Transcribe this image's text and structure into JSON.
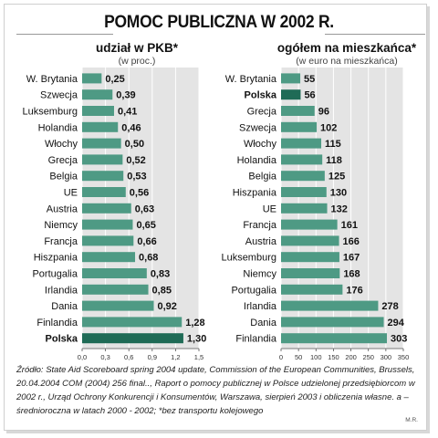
{
  "title": "POMOC PUBLICZNA W 2002 R.",
  "chart_data": [
    {
      "type": "bar",
      "orientation": "horizontal",
      "title": "udział w PKB*",
      "subtitle": "(w proc.)",
      "categories": [
        "W. Brytania",
        "Szwecja",
        "Luksemburg",
        "Holandia",
        "Włochy",
        "Grecja",
        "Belgia",
        "UE",
        "Austria",
        "Niemcy",
        "Francja",
        "Hiszpania",
        "Portugalia",
        "Irlandia",
        "Dania",
        "Finlandia",
        "Polska"
      ],
      "values": [
        0.25,
        0.39,
        0.41,
        0.46,
        0.5,
        0.52,
        0.53,
        0.56,
        0.63,
        0.65,
        0.66,
        0.68,
        0.83,
        0.85,
        0.92,
        1.28,
        1.3
      ],
      "value_labels": [
        "0,25",
        "0,39",
        "0,41",
        "0,46",
        "0,50",
        "0,52",
        "0,53",
        "0,56",
        "0,63",
        "0,65",
        "0,66",
        "0,68",
        "0,83",
        "0,85",
        "0,92",
        "1,28",
        "1,30"
      ],
      "xlim": [
        0,
        1.5
      ],
      "ticks": [
        0,
        0.3,
        0.6,
        0.9,
        1.2,
        1.5
      ],
      "tick_labels": [
        "0,0",
        "0,3",
        "0,6",
        "0,9",
        "1,2",
        "1,5"
      ],
      "bar_color": "#4e9a84",
      "highlight_color": "#1f6b56",
      "highlight_categories": [
        "Polska"
      ]
    },
    {
      "type": "bar",
      "orientation": "horizontal",
      "title": "ogółem na mieszkańca*",
      "subtitle": "(w euro na mieszkańca)",
      "categories": [
        "W. Brytania",
        "Polska",
        "Grecja",
        "Szwecja",
        "Włochy",
        "Holandia",
        "Belgia",
        "Hiszpania",
        "UE",
        "Francja",
        "Austria",
        "Luksemburg",
        "Niemcy",
        "Portugalia",
        "Irlandia",
        "Dania",
        "Finlandia"
      ],
      "values": [
        55,
        56,
        96,
        102,
        115,
        118,
        125,
        130,
        132,
        161,
        166,
        167,
        168,
        176,
        278,
        294,
        303
      ],
      "value_labels": [
        "55",
        "56",
        "96",
        "102",
        "115",
        "118",
        "125",
        "130",
        "132",
        "161",
        "166",
        "167",
        "168",
        "176",
        "278",
        "294",
        "303"
      ],
      "xlim": [
        0,
        350
      ],
      "ticks": [
        0,
        50,
        100,
        150,
        200,
        250,
        300,
        350
      ],
      "tick_labels": [
        "0",
        "50",
        "100",
        "150",
        "200",
        "250",
        "300",
        "350"
      ],
      "bar_color": "#4e9a84",
      "highlight_color": "#1f6b56",
      "highlight_categories": [
        "Polska"
      ]
    }
  ],
  "footer": "Źródło: State Aid Scoreboard spring 2004 update, Commission of the European Communities, Brussels, 20.04.2004 COM (2004) 256 final.., Raport o pomocy publicznej w Polsce udzielonej przedsiębiorcom w 2002 r., Urząd Ochrony Konkurencji i Konsumentów, Warszawa, sierpień 2003 i obliczenia własne. a – średnioroczna w latach 2000 - 2002; *bez transportu kolejowego",
  "signature": "M.R."
}
